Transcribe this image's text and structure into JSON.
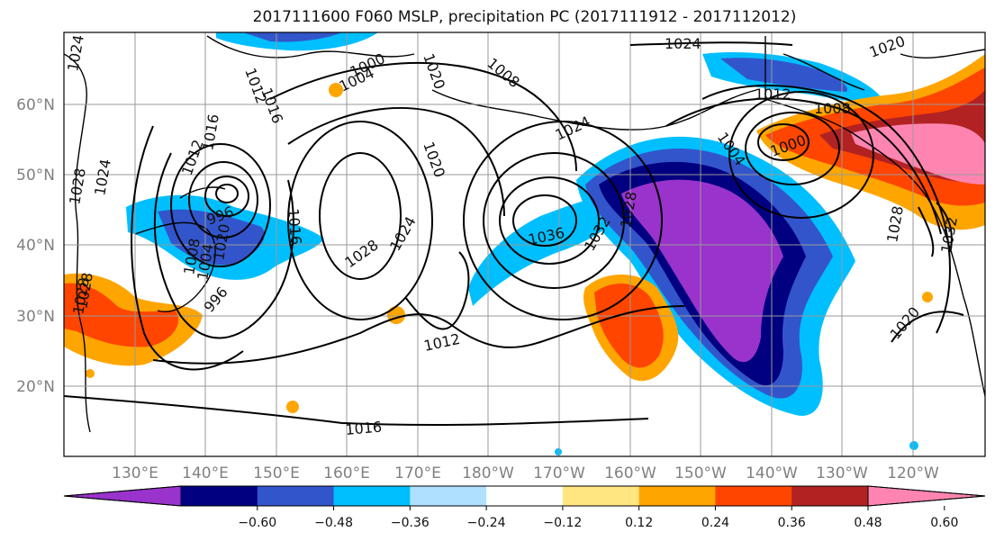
{
  "title": "2017111600 F060 MSLP, precipitation PC (2017111912 - 2017112012)",
  "lat_labels": [
    "60°N",
    "50°N",
    "40°N",
    "30°N",
    "20°N"
  ],
  "lon_labels": [
    "130°E",
    "140°E",
    "150°E",
    "160°E",
    "170°E",
    "180°W",
    "170°W",
    "160°W",
    "150°W",
    "140°W",
    "130°W",
    "120°W"
  ],
  "colorbar": {
    "ticks": [
      "−0.60",
      "−0.48",
      "−0.36",
      "−0.24",
      "−0.12",
      "0.12",
      "0.24",
      "0.36",
      "0.48",
      "0.60"
    ],
    "colors": [
      "#9933cc",
      "#000080",
      "#3355cc",
      "#00bfff",
      "#b0e0ff",
      "#ffffff",
      "#ffe680",
      "#ffa500",
      "#ff4500",
      "#b22222",
      "#ff85b0"
    ]
  },
  "isobar_labels": [
    "1024",
    "1020",
    "1000",
    "1004",
    "1008",
    "1016",
    "1024",
    "1028",
    "1020",
    "1012",
    "1016",
    "1028",
    "1024",
    "1036",
    "1032",
    "1028",
    "1024",
    "1012",
    "1004",
    "1000",
    "1008",
    "1012",
    "1020",
    "1020",
    "1028",
    "1032",
    "1028",
    "1024",
    "1008",
    "1004",
    "996",
    "996",
    "1012",
    "1020",
    "1016",
    "1028"
  ]
}
